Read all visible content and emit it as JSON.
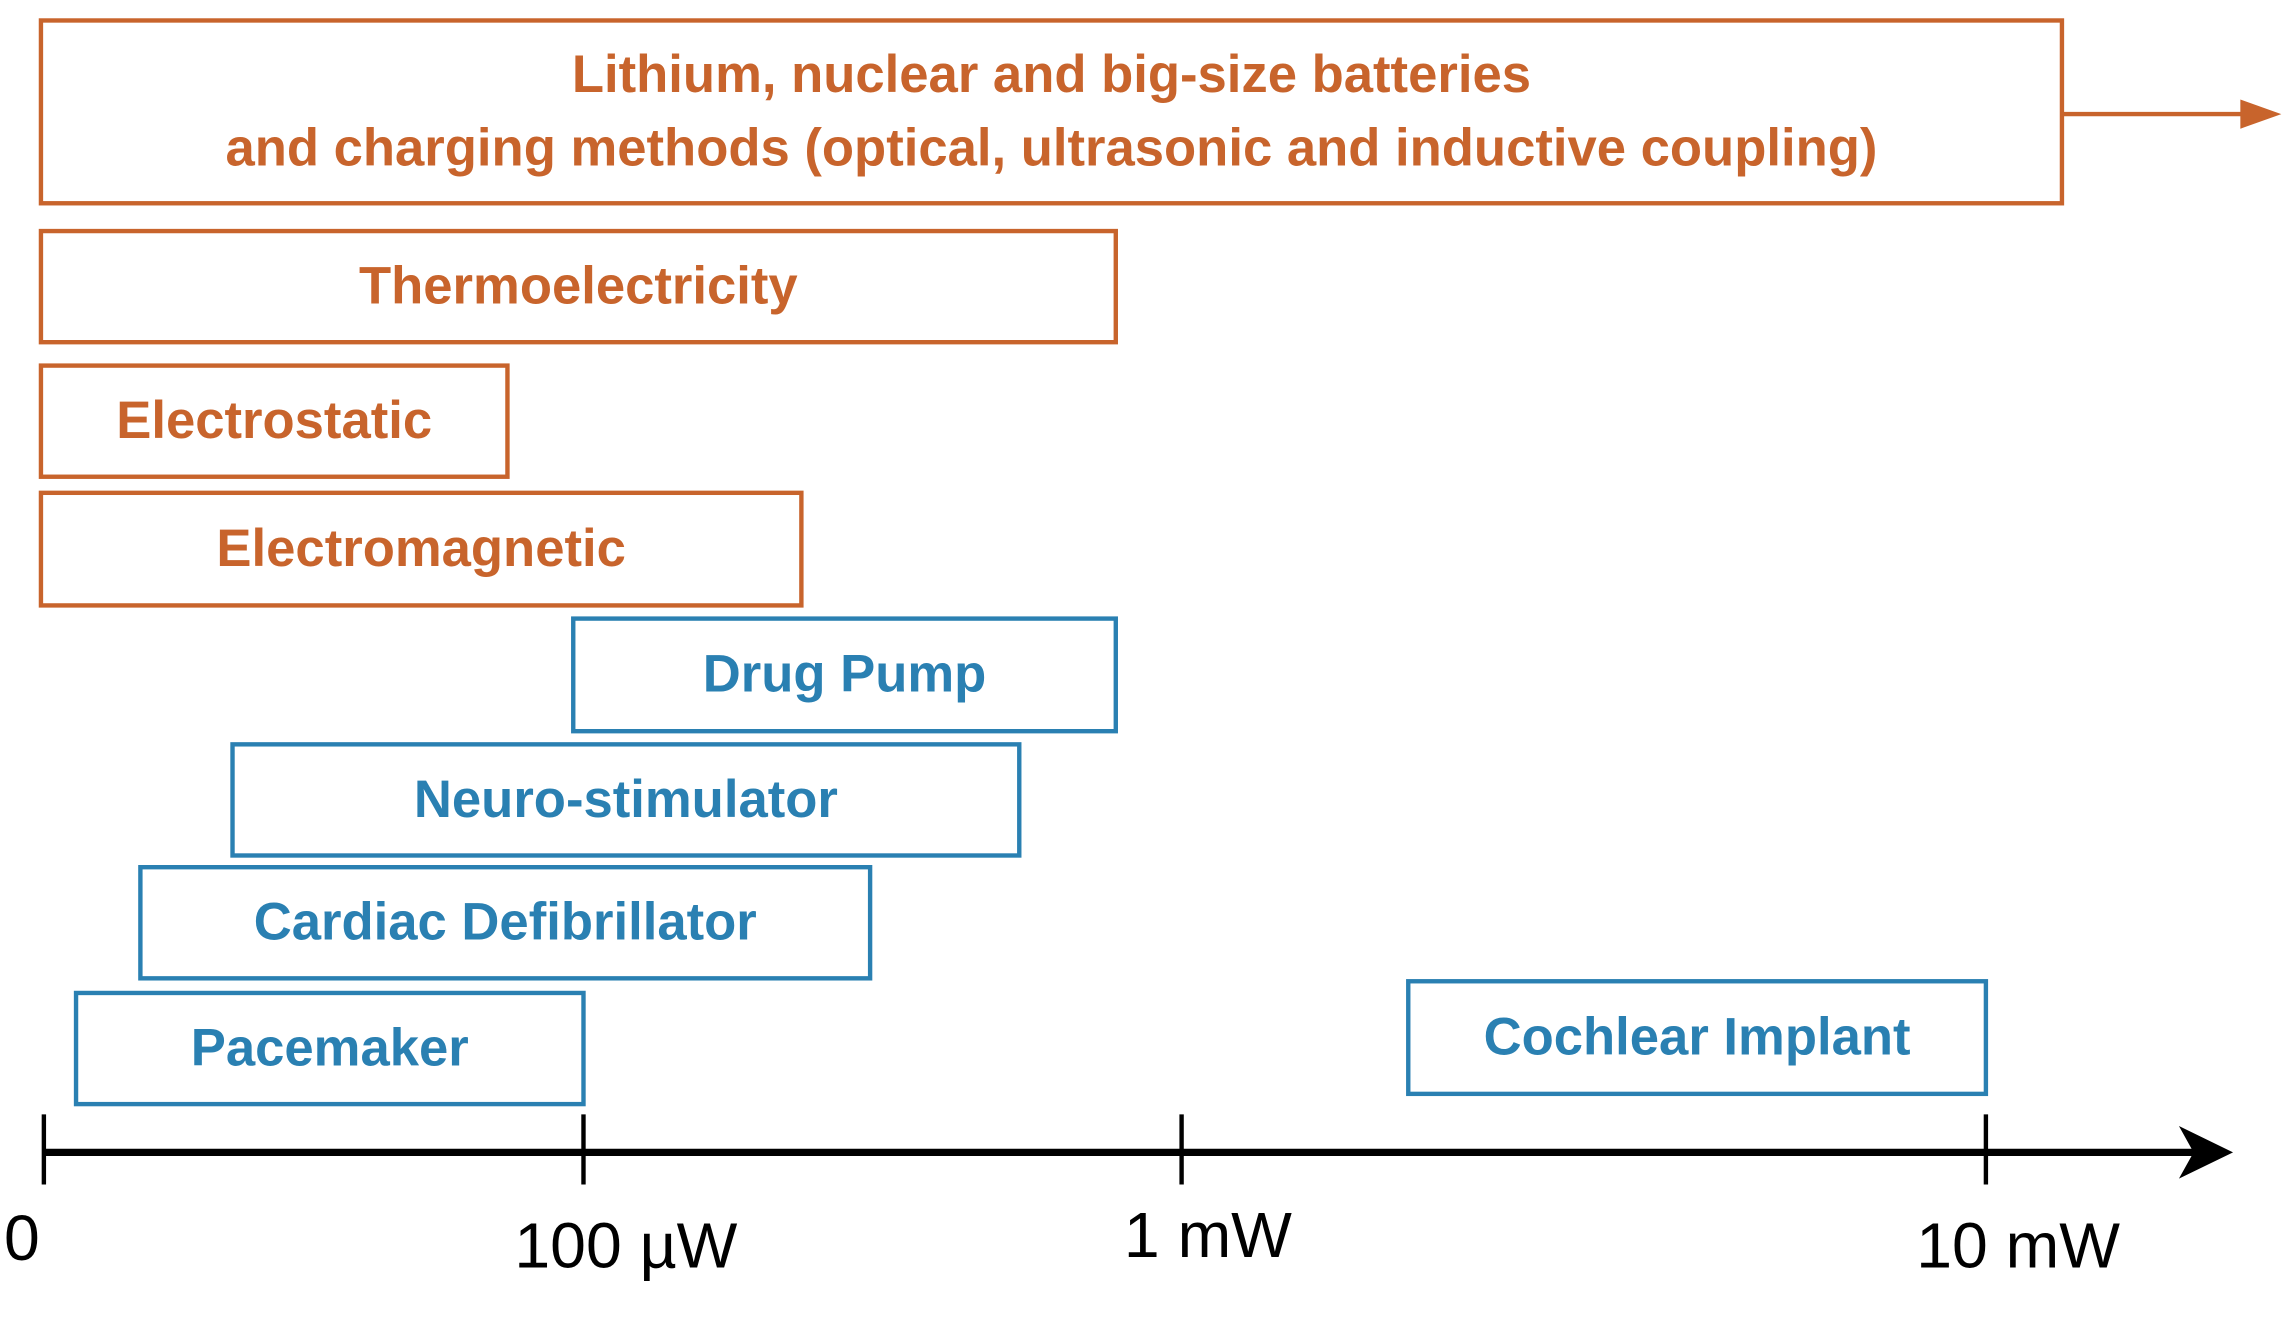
{
  "sources": [
    {
      "lines": [
        "Lithium, nuclear and big-size batteries",
        "and charging methods (optical, ultrasonic and inductive coupling)"
      ]
    },
    {
      "lines": [
        "Thermoelectricity"
      ]
    },
    {
      "lines": [
        "Electrostatic"
      ]
    },
    {
      "lines": [
        "Electromagnetic"
      ]
    }
  ],
  "devices": [
    {
      "label": "Drug Pump"
    },
    {
      "label": "Neuro-stimulator"
    },
    {
      "label": "Cardiac Defibrillator"
    },
    {
      "label": "Pacemaker"
    },
    {
      "label": "Cochlear Implant"
    }
  ],
  "axis": {
    "ticks": [
      "0",
      "100 µW",
      "1 mW",
      "10 mW"
    ]
  }
}
